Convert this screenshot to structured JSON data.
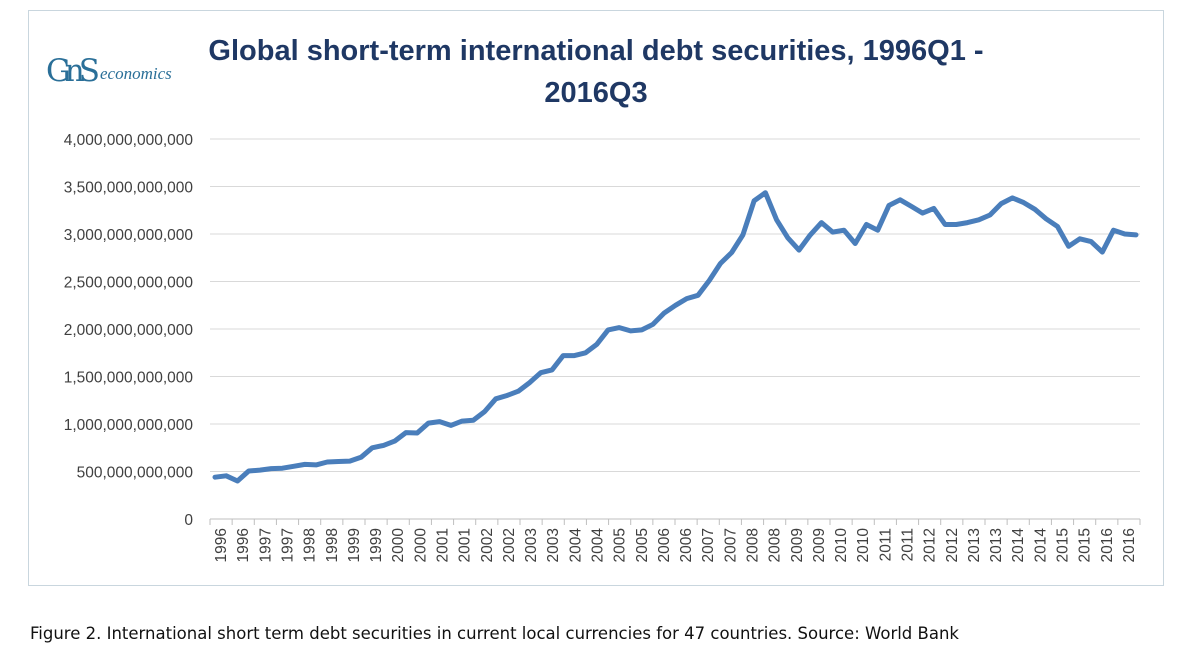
{
  "logo": {
    "mark": "GnS",
    "word": "economics"
  },
  "chart_data": {
    "type": "line",
    "title": "Global short-term international debt securities, 1996Q1 - 2016Q3",
    "xlabel": "",
    "ylabel": "",
    "ylim": [
      0,
      4000000000000
    ],
    "y_ticks": [
      0,
      500000000000,
      1000000000000,
      1500000000000,
      2000000000000,
      2500000000000,
      3000000000000,
      3500000000000,
      4000000000000
    ],
    "y_tick_labels": [
      "0",
      "500,000,000,000",
      "1,000,000,000,000",
      "1,500,000,000,000",
      "2,000,000,000,000",
      "2,500,000,000,000",
      "3,000,000,000,000",
      "3,500,000,000,000",
      "4,000,000,000,000"
    ],
    "x_tick_labels": [
      "1996",
      "1996",
      "1997",
      "1997",
      "1998",
      "1998",
      "1999",
      "1999",
      "2000",
      "2000",
      "2001",
      "2001",
      "2002",
      "2002",
      "2003",
      "2003",
      "2004",
      "2004",
      "2005",
      "2005",
      "2006",
      "2006",
      "2007",
      "2007",
      "2008",
      "2008",
      "2009",
      "2009",
      "2010",
      "2010",
      "2011",
      "2011",
      "2012",
      "2012",
      "2013",
      "2013",
      "2014",
      "2014",
      "2015",
      "2015",
      "2016",
      "2016"
    ],
    "grid": true,
    "legend": "none",
    "line_color": "#4a7ebb",
    "series": [
      {
        "values": [
          440000000000,
          455000000000,
          400000000000,
          505000000000,
          515000000000,
          530000000000,
          535000000000,
          555000000000,
          575000000000,
          570000000000,
          600000000000,
          605000000000,
          610000000000,
          650000000000,
          750000000000,
          775000000000,
          820000000000,
          910000000000,
          905000000000,
          1010000000000,
          1025000000000,
          985000000000,
          1030000000000,
          1040000000000,
          1130000000000,
          1265000000000,
          1300000000000,
          1345000000000,
          1435000000000,
          1540000000000,
          1570000000000,
          1720000000000,
          1720000000000,
          1750000000000,
          1840000000000,
          1990000000000,
          2015000000000,
          1980000000000,
          1990000000000,
          2050000000000,
          2170000000000,
          2250000000000,
          2320000000000,
          2355000000000,
          2510000000000,
          2690000000000,
          2805000000000,
          2990000000000,
          3350000000000,
          3435000000000,
          3150000000000,
          2960000000000,
          2830000000000,
          2990000000000,
          3120000000000,
          3020000000000,
          3040000000000,
          2900000000000,
          3100000000000,
          3040000000000,
          3300000000000,
          3360000000000,
          3290000000000,
          3220000000000,
          3270000000000,
          3100000000000,
          3100000000000,
          3120000000000,
          3150000000000,
          3200000000000,
          3320000000000,
          3380000000000,
          3330000000000,
          3260000000000,
          3160000000000,
          3080000000000,
          2870000000000,
          2950000000000,
          2920000000000,
          2810000000000,
          3040000000000,
          3000000000000,
          2990000000000
        ]
      }
    ]
  },
  "caption": "Figure 2. International short term debt securities in current local currencies for 47 countries. Source: World Bank"
}
